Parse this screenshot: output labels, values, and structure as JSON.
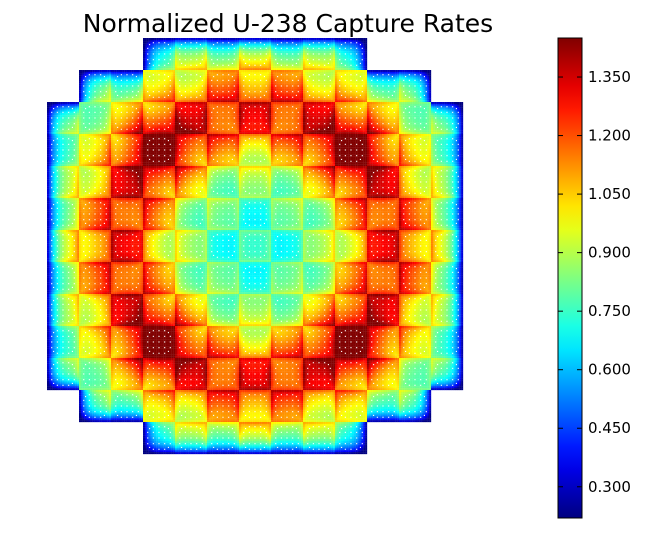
{
  "chart_data": {
    "type": "heatmap",
    "title": "Normalized U-238 Capture Rates",
    "xlabel": "",
    "ylabel": "",
    "colormap": "jet",
    "clim": [
      0.22,
      1.45
    ],
    "colorbar": {
      "ticks": [
        0.3,
        0.45,
        0.6,
        0.75,
        0.9,
        1.05,
        1.2,
        1.35
      ],
      "tick_labels": [
        "0.300",
        "0.450",
        "0.600",
        "0.750",
        "0.900",
        "1.050",
        "1.200",
        "1.350"
      ]
    },
    "assembly_rows": [
      "...#######...",
      ".###########.",
      "#############",
      "#############",
      "#############",
      "#############",
      "#############",
      "#############",
      "#############",
      "#############",
      "#############",
      ".###########.",
      "...#######..."
    ],
    "pins_per_assembly": 17,
    "value_range": {
      "min": 0.25,
      "max": 1.42
    },
    "colors": {
      "background": "#ffffff",
      "guide_tube_dots": "#ffffff",
      "text": "#000000"
    }
  }
}
